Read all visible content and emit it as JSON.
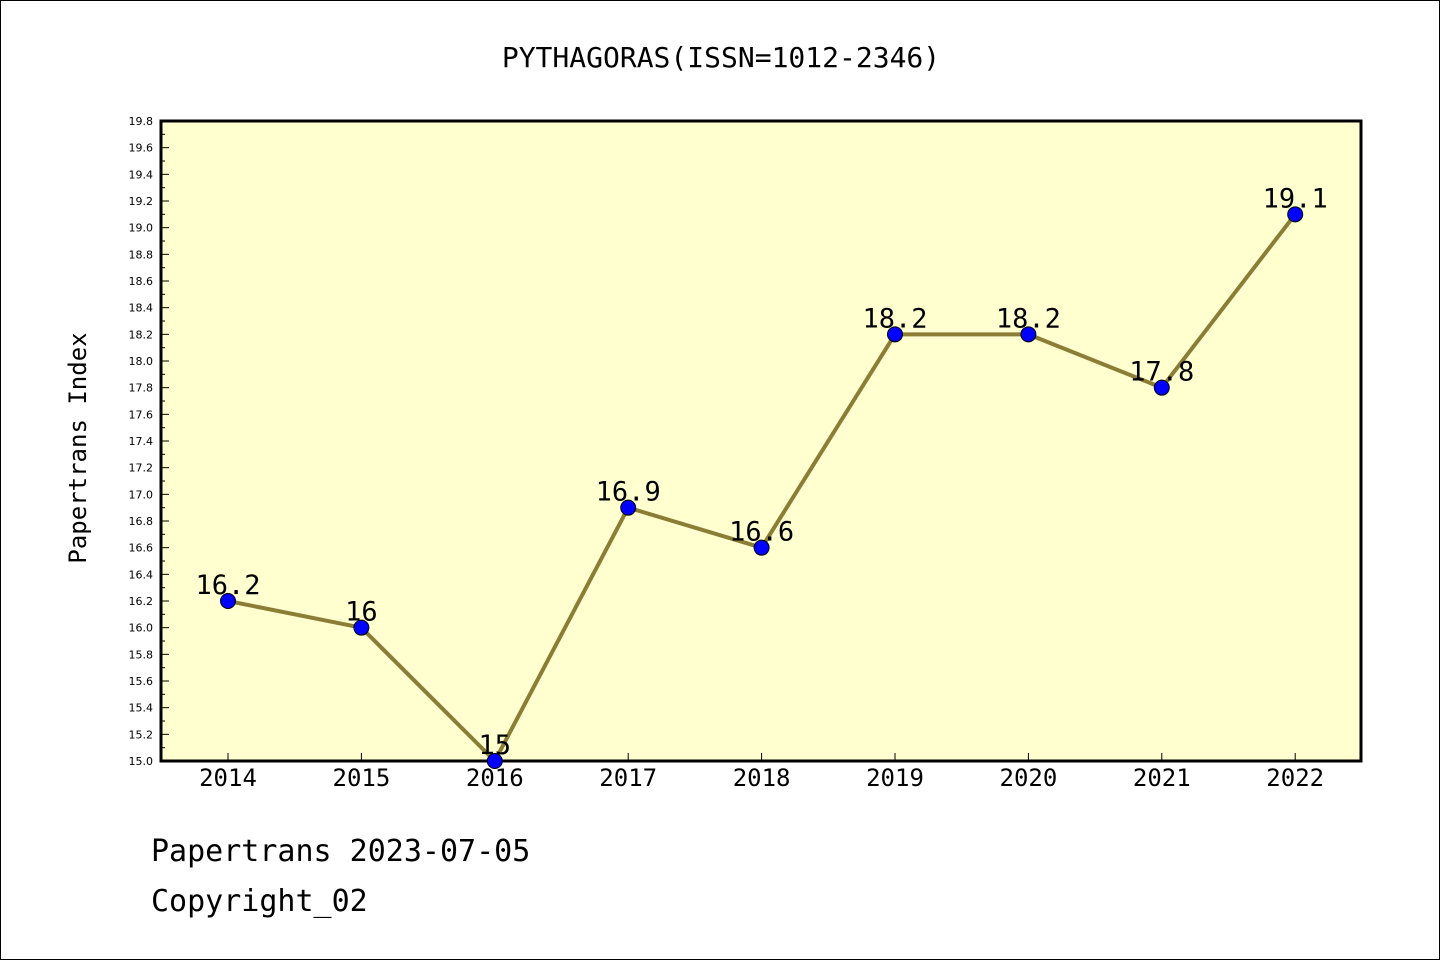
{
  "chart_data": {
    "type": "line",
    "title": "PYTHAGORAS(ISSN=1012-2346)",
    "ylabel": "Papertrans Index",
    "xlabel": "",
    "categories": [
      "2014",
      "2015",
      "2016",
      "2017",
      "2018",
      "2019",
      "2020",
      "2021",
      "2022"
    ],
    "values": [
      16.2,
      16.0,
      15.0,
      16.9,
      16.6,
      18.2,
      18.2,
      17.8,
      19.1
    ],
    "data_labels": [
      "16.2",
      "16",
      "15",
      "16.9",
      "16.6",
      "18.2",
      "18.2",
      "17.8",
      "19.1"
    ],
    "ylim": [
      15.0,
      19.8
    ],
    "yticks": [
      "15.0",
      "15.2",
      "15.4",
      "15.6",
      "15.8",
      "16.0",
      "16.2",
      "16.4",
      "16.6",
      "16.8",
      "17.0",
      "17.2",
      "17.4",
      "17.6",
      "17.8",
      "18.0",
      "18.2",
      "18.4",
      "18.6",
      "18.8",
      "19.0",
      "19.2",
      "19.4",
      "19.6",
      "19.8"
    ],
    "grid": false,
    "colors": {
      "line": "#8B7D35",
      "marker": "#0000FF",
      "plot_background": "#FFFFD0"
    }
  },
  "footer": {
    "line1": "Papertrans 2023-07-05",
    "line2": "Copyright_02"
  }
}
